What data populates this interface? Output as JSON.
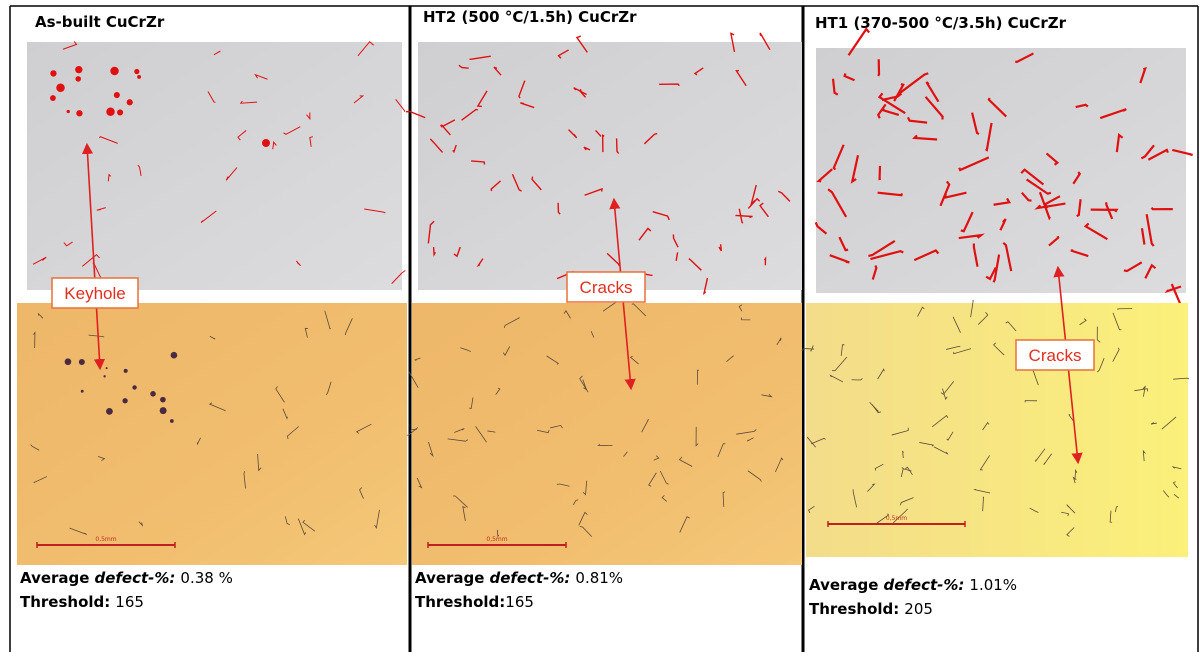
{
  "panels": [
    {
      "title": "As-built CuCrZr",
      "callout": "Keyhole",
      "scale_label": "0,5mm",
      "defect_prefix": "Average",
      "defect_term": "defect-%:",
      "defect_value": "0.38 %",
      "threshold_label": "Threshold:",
      "threshold_value": "165"
    },
    {
      "title": "HT2 (500 °C/1.5h) CuCrZr",
      "callout": "Cracks",
      "scale_label": "0,5mm",
      "defect_prefix": "Average",
      "defect_term": "defect-%:",
      "defect_value": "0.81%",
      "threshold_label": "Threshold:",
      "threshold_value": "165"
    },
    {
      "title": "HT1 (370-500 °C/3.5h) CuCrZr",
      "callout": "Cracks",
      "scale_label": "0,5mm",
      "defect_prefix": "Average",
      "defect_term": "defect-%:",
      "defect_value": "1.01%",
      "threshold_label": "Threshold:",
      "threshold_value": "205"
    }
  ]
}
